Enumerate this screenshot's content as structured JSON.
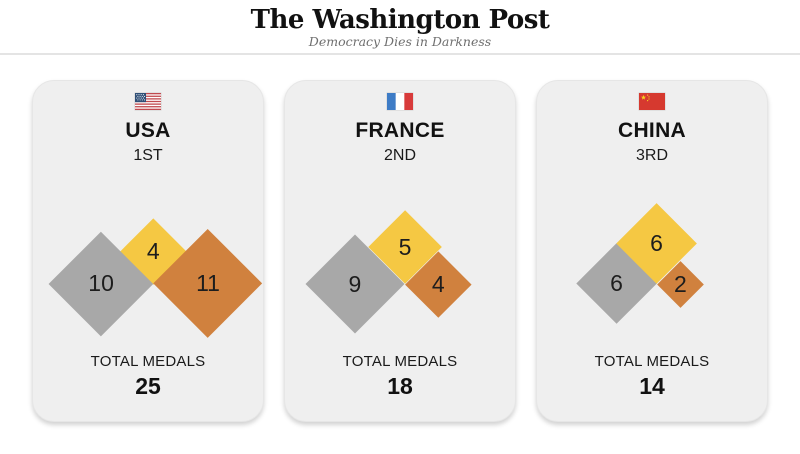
{
  "masthead": {
    "title": "The Washington Post",
    "tagline": "Democracy Dies in Darkness"
  },
  "colors": {
    "gold": "#F5C843",
    "silver": "#A8A8A8",
    "bronze": "#D0813E",
    "card_bg": "#EFEFEF"
  },
  "cards": [
    {
      "country": "USA",
      "rank": "1ST",
      "flag_icon": "usa-flag-icon",
      "medals": {
        "silver": 10,
        "gold": 4,
        "bronze": 11
      },
      "total_label": "TOTAL MEDALS",
      "total": "25"
    },
    {
      "country": "FRANCE",
      "rank": "2ND",
      "flag_icon": "france-flag-icon",
      "medals": {
        "silver": 9,
        "gold": 5,
        "bronze": 4
      },
      "total_label": "TOTAL MEDALS",
      "total": "18"
    },
    {
      "country": "CHINA",
      "rank": "3RD",
      "flag_icon": "china-flag-icon",
      "medals": {
        "silver": 6,
        "gold": 6,
        "bronze": 2
      },
      "total_label": "TOTAL MEDALS",
      "total": "14"
    }
  ],
  "chart_data": {
    "type": "area",
    "mark": "diamond",
    "note": "Proportional-area diamond chart; diamond area scales with medal count",
    "categories": [
      "USA",
      "FRANCE",
      "CHINA"
    ],
    "series": [
      {
        "name": "Silver",
        "color": "#A8A8A8",
        "values": [
          10,
          9,
          6
        ]
      },
      {
        "name": "Gold",
        "color": "#F5C843",
        "values": [
          4,
          5,
          6
        ]
      },
      {
        "name": "Bronze",
        "color": "#D0813E",
        "values": [
          11,
          4,
          2
        ]
      }
    ],
    "totals": [
      25,
      18,
      14
    ],
    "ranks": [
      "1ST",
      "2ND",
      "3RD"
    ],
    "title": "",
    "legend": "off"
  }
}
